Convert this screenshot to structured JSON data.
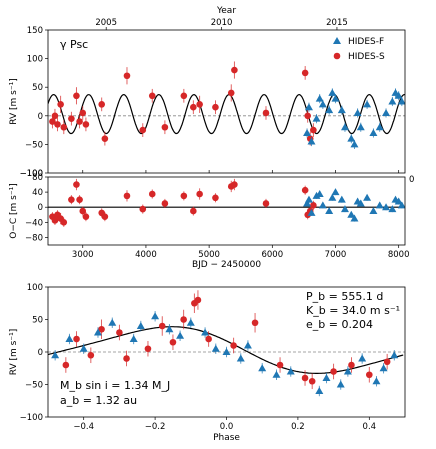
{
  "chart_data": [
    {
      "panel": "rv-time",
      "type": "scatter",
      "title_text": "γ Psc",
      "ylabel": "RV [m s⁻¹]",
      "top_xlabel": "Year",
      "top_ticks": [
        "2005",
        "2010",
        "2015"
      ],
      "top_tick_bjd": [
        3371,
        5197,
        7023
      ],
      "xlim": [
        2450,
        8100
      ],
      "ylim": [
        -100,
        150
      ],
      "yticks": [
        "−100",
        "−50",
        "0",
        "50",
        "100",
        "150"
      ],
      "ytick_values": [
        -100,
        -50,
        0,
        50,
        100,
        150
      ],
      "model_period": 555.1,
      "model_K": 34.0,
      "model_offset": 3,
      "legend": {
        "placement": "top-right",
        "entries": [
          "HIDES-F",
          "HIDES-S"
        ]
      },
      "series": [
        {
          "name": "HIDES-S",
          "marker": "circle",
          "color": "#d62728",
          "x": [
            2520,
            2560,
            2600,
            2650,
            2700,
            2820,
            2900,
            2950,
            3000,
            3050,
            3300,
            3350,
            3700,
            3950,
            4100,
            4300,
            4600,
            4750,
            4850,
            5100,
            5350,
            5400,
            5900,
            6520,
            6560,
            6600,
            6650
          ],
          "y": [
            -10,
            0,
            -15,
            20,
            -20,
            -5,
            35,
            -10,
            5,
            -15,
            20,
            -40,
            70,
            -25,
            35,
            -20,
            35,
            15,
            20,
            15,
            40,
            80,
            5,
            75,
            0,
            -40,
            -25
          ],
          "err": [
            12,
            12,
            12,
            15,
            12,
            12,
            15,
            12,
            12,
            12,
            12,
            12,
            15,
            12,
            12,
            12,
            12,
            12,
            15,
            12,
            15,
            15,
            12,
            12,
            12,
            12,
            12
          ]
        },
        {
          "name": "HIDES-F",
          "marker": "triangle",
          "color": "#1f77b4",
          "x": [
            6550,
            6580,
            6620,
            6700,
            6750,
            6800,
            6900,
            6950,
            7000,
            7100,
            7150,
            7250,
            7300,
            7350,
            7400,
            7500,
            7600,
            7700,
            7800,
            7900,
            7950,
            8000,
            8050
          ],
          "y": [
            -30,
            15,
            -45,
            -5,
            30,
            20,
            10,
            40,
            30,
            10,
            -20,
            -40,
            -50,
            5,
            -20,
            20,
            -30,
            -20,
            5,
            25,
            40,
            35,
            25
          ],
          "err": [
            8,
            8,
            8,
            8,
            8,
            8,
            8,
            8,
            8,
            8,
            8,
            8,
            8,
            8,
            8,
            8,
            8,
            8,
            8,
            8,
            8,
            8,
            8
          ]
        }
      ]
    },
    {
      "panel": "residuals",
      "type": "scatter",
      "ylabel": "O−C [m s⁻¹]",
      "xlabel": "BJD − 2450000",
      "xlim": [
        2450,
        8100
      ],
      "ylim": [
        -100,
        80
      ],
      "xticks": [
        "3000",
        "4000",
        "5000",
        "6000",
        "7000",
        "8000"
      ],
      "xtick_values": [
        3000,
        4000,
        5000,
        6000,
        7000,
        8000
      ],
      "yticks": [
        "−80",
        "−40",
        "0",
        "40",
        "80"
      ],
      "ytick_values": [
        -80,
        -40,
        0,
        40,
        80
      ],
      "extra_tick_labels": [
        "−100",
        "0"
      ],
      "series": [
        {
          "name": "HIDES-S",
          "marker": "circle",
          "color": "#d62728",
          "x": [
            2520,
            2560,
            2600,
            2650,
            2700,
            2820,
            2900,
            2950,
            3000,
            3050,
            3300,
            3350,
            3700,
            3950,
            4100,
            4300,
            4600,
            4750,
            4850,
            5100,
            5350,
            5400,
            5900,
            6520,
            6560,
            6600,
            6650
          ],
          "y": [
            -25,
            -35,
            -20,
            -30,
            -40,
            20,
            60,
            20,
            -10,
            -25,
            -15,
            -25,
            30,
            -5,
            35,
            10,
            30,
            -10,
            35,
            25,
            55,
            60,
            10,
            45,
            -20,
            -10,
            5
          ],
          "err": [
            12,
            12,
            12,
            15,
            12,
            12,
            15,
            12,
            12,
            12,
            12,
            12,
            15,
            12,
            12,
            12,
            12,
            12,
            15,
            12,
            15,
            15,
            12,
            12,
            12,
            12,
            12
          ]
        },
        {
          "name": "HIDES-F",
          "marker": "triangle",
          "color": "#1f77b4",
          "x": [
            6550,
            6580,
            6620,
            6700,
            6750,
            6800,
            6900,
            6950,
            7000,
            7100,
            7150,
            7250,
            7300,
            7350,
            7400,
            7500,
            7600,
            7700,
            7800,
            7900,
            7950,
            8000,
            8050
          ],
          "y": [
            10,
            20,
            -15,
            30,
            35,
            5,
            -10,
            25,
            40,
            20,
            -5,
            -20,
            -30,
            15,
            10,
            25,
            -10,
            5,
            0,
            -5,
            20,
            15,
            5
          ],
          "err": [
            8,
            8,
            8,
            8,
            8,
            8,
            8,
            8,
            8,
            8,
            8,
            8,
            8,
            8,
            8,
            8,
            8,
            8,
            8,
            8,
            8,
            8,
            8
          ]
        }
      ]
    },
    {
      "panel": "phase",
      "type": "scatter",
      "ylabel": "RV [m s⁻¹]",
      "xlabel": "Phase",
      "xlim": [
        -0.5,
        0.5
      ],
      "ylim": [
        -100,
        100
      ],
      "xticks": [
        "−0.4",
        "−0.2",
        "0.0",
        "0.2",
        "0.4"
      ],
      "xtick_values": [
        -0.4,
        -0.2,
        0.0,
        0.2,
        0.4
      ],
      "yticks": [
        "−100",
        "−50",
        "0",
        "50",
        "100"
      ],
      "ytick_values": [
        -100,
        -50,
        0,
        50,
        100
      ],
      "model_K": 34.0,
      "model_offset": 3,
      "annotations": {
        "period": "P_b = 555.1 d",
        "amplitude": "K_b = 34.0 m s⁻¹",
        "eccentricity": "e_b = 0.204",
        "msini": "M_b sin i = 1.34 M_J",
        "semimajor": "a_b = 1.32 au"
      },
      "series": [
        {
          "name": "HIDES-S",
          "marker": "circle",
          "color": "#d62728",
          "x": [
            -0.45,
            -0.42,
            -0.38,
            -0.35,
            -0.3,
            -0.28,
            -0.22,
            -0.18,
            -0.15,
            -0.12,
            -0.09,
            -0.08,
            -0.05,
            0.02,
            0.08,
            0.15,
            0.22,
            0.24,
            0.3,
            0.35,
            0.4,
            0.45
          ],
          "y": [
            -20,
            20,
            -5,
            35,
            30,
            -10,
            5,
            40,
            15,
            50,
            75,
            80,
            20,
            10,
            45,
            -20,
            -40,
            -45,
            -30,
            -20,
            -35,
            -15
          ],
          "err": [
            12,
            12,
            12,
            15,
            12,
            12,
            12,
            15,
            12,
            15,
            15,
            15,
            12,
            12,
            15,
            12,
            12,
            12,
            12,
            12,
            12,
            12
          ]
        },
        {
          "name": "HIDES-F",
          "marker": "triangle",
          "color": "#1f77b4",
          "x": [
            -0.48,
            -0.44,
            -0.4,
            -0.36,
            -0.32,
            -0.26,
            -0.24,
            -0.2,
            -0.16,
            -0.13,
            -0.1,
            -0.06,
            -0.03,
            0.0,
            0.04,
            0.06,
            0.1,
            0.14,
            0.18,
            0.26,
            0.28,
            0.32,
            0.34,
            0.38,
            0.42,
            0.44,
            0.47
          ],
          "y": [
            -5,
            20,
            5,
            30,
            45,
            20,
            40,
            55,
            35,
            25,
            45,
            30,
            5,
            0,
            -10,
            10,
            -25,
            -35,
            -30,
            -60,
            -40,
            -50,
            -30,
            -10,
            -45,
            -25,
            -5
          ],
          "err": [
            8,
            8,
            8,
            8,
            8,
            8,
            8,
            8,
            8,
            8,
            8,
            8,
            8,
            8,
            8,
            8,
            8,
            8,
            8,
            8,
            8,
            8,
            8,
            8,
            8,
            8,
            8
          ]
        }
      ]
    }
  ]
}
